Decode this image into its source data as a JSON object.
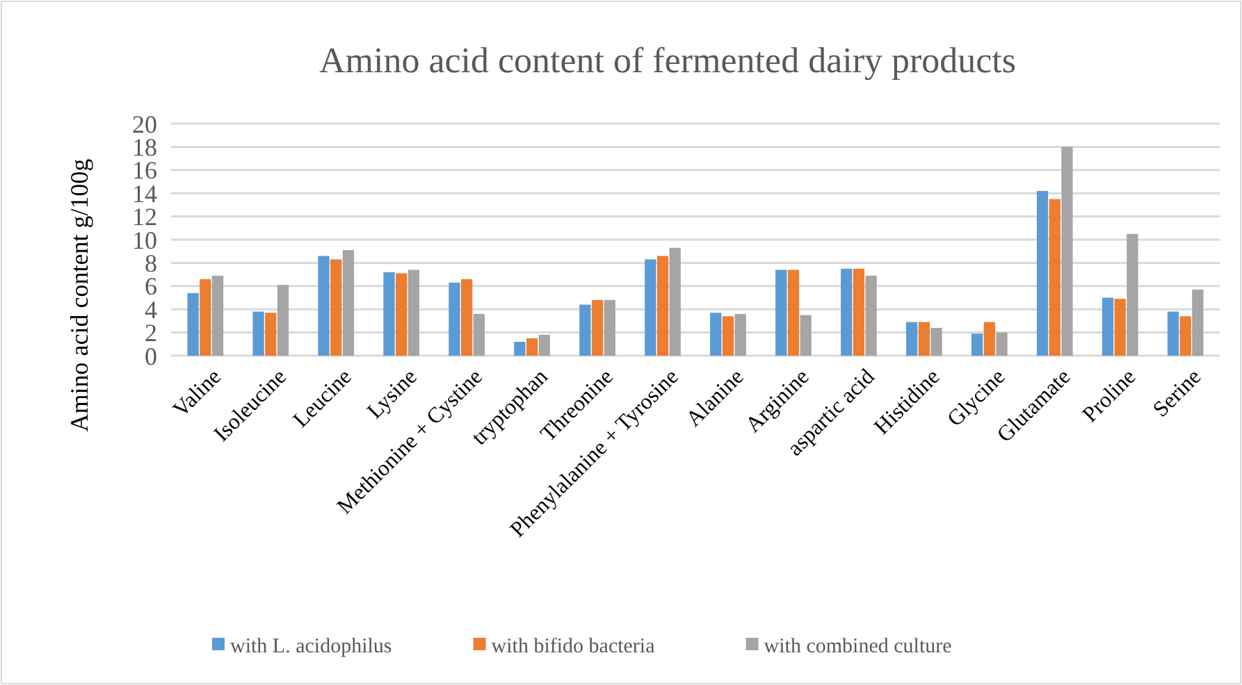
{
  "chart_data": {
    "type": "bar",
    "title": "Amino acid content of fermented dairy products",
    "ylabel": "Amino acid content g/100g",
    "categories": [
      "Valine",
      "Isoleucine",
      "Leucine",
      "Lysine",
      "Methionine + Cystine",
      "tryptophan",
      "Threonine",
      "Phenylalanine + Tyrosine",
      "Alanine",
      "Arginine",
      "aspartic acid",
      "Histidine",
      "Glycine",
      "Glutamate",
      "Proline",
      "Serine"
    ],
    "series": [
      {
        "name": "with L. acidophilus",
        "color": "#5b9bd5",
        "values": [
          5.4,
          3.8,
          8.6,
          7.2,
          6.3,
          1.2,
          4.4,
          8.3,
          3.7,
          7.4,
          7.5,
          2.9,
          1.9,
          14.2,
          5.0,
          3.8
        ]
      },
      {
        "name": "with bifido bacteria",
        "color": "#ed7d31",
        "values": [
          6.6,
          3.7,
          8.3,
          7.1,
          6.6,
          1.5,
          4.8,
          8.6,
          3.4,
          7.4,
          7.5,
          2.9,
          2.9,
          13.5,
          4.9,
          3.4
        ]
      },
      {
        "name": "with combined culture",
        "color": "#a5a5a5",
        "values": [
          6.9,
          6.1,
          9.1,
          7.4,
          3.6,
          1.8,
          4.8,
          9.3,
          3.6,
          3.5,
          6.9,
          2.4,
          2.0,
          18.0,
          10.5,
          5.7
        ]
      }
    ],
    "ylim": [
      0,
      20
    ],
    "yticks": [
      0,
      2,
      4,
      6,
      8,
      10,
      12,
      14,
      16,
      18,
      20
    ],
    "grid": "y",
    "legend": "bottom"
  }
}
